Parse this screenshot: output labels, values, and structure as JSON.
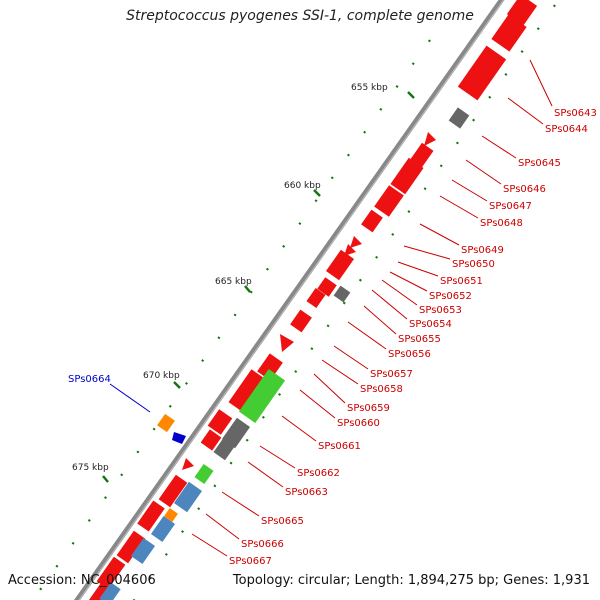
{
  "title": "Streptococcus pyogenes SSI-1, complete genome",
  "footer": {
    "accession": "Accession: NC_004606",
    "summary": "Topology: circular; Length: 1,894,275 bp; Genes: 1,931"
  },
  "colors": {
    "forward": "#ee1111",
    "forward_dark": "#bb0000",
    "neutral": "#666666",
    "neutral_dark": "#444444",
    "green": "#44cc33",
    "blue": "#4d86bf",
    "orange": "#ff8800",
    "highlight": "#0000cc",
    "label_red": "#cc0000",
    "tick": "#117711",
    "backbone": "#888888"
  },
  "kbp_ticks": [
    {
      "id": "655",
      "label": "655 kbp"
    },
    {
      "id": "660",
      "label": "660 kbp"
    },
    {
      "id": "665",
      "label": "665 kbp"
    },
    {
      "id": "670",
      "label": "670 kbp"
    },
    {
      "id": "675",
      "label": "675 kbp"
    }
  ],
  "gene_labels": [
    {
      "id": "SPs0643",
      "text": "SPs0643"
    },
    {
      "id": "SPs0644",
      "text": "SPs0644"
    },
    {
      "id": "SPs0645",
      "text": "SPs0645"
    },
    {
      "id": "SPs0646",
      "text": "SPs0646"
    },
    {
      "id": "SPs0647",
      "text": "SPs0647"
    },
    {
      "id": "SPs0648",
      "text": "SPs0648"
    },
    {
      "id": "SPs0649",
      "text": "SPs0649"
    },
    {
      "id": "SPs0650",
      "text": "SPs0650"
    },
    {
      "id": "SPs0651",
      "text": "SPs0651"
    },
    {
      "id": "SPs0652",
      "text": "SPs0652"
    },
    {
      "id": "SPs0653",
      "text": "SPs0653"
    },
    {
      "id": "SPs0654",
      "text": "SPs0654"
    },
    {
      "id": "SPs0655",
      "text": "SPs0655"
    },
    {
      "id": "SPs0656",
      "text": "SPs0656"
    },
    {
      "id": "SPs0657",
      "text": "SPs0657"
    },
    {
      "id": "SPs0658",
      "text": "SPs0658"
    },
    {
      "id": "SPs0659",
      "text": "SPs0659"
    },
    {
      "id": "SPs0660",
      "text": "SPs0660"
    },
    {
      "id": "SPs0661",
      "text": "SPs0661"
    },
    {
      "id": "SPs0662",
      "text": "SPs0662"
    },
    {
      "id": "SPs0663",
      "text": "SPs0663"
    },
    {
      "id": "SPs0665",
      "text": "SPs0665"
    },
    {
      "id": "SPs0666",
      "text": "SPs0666"
    },
    {
      "id": "SPs0667",
      "text": "SPs0667"
    }
  ],
  "highlighted_label": {
    "id": "SPs0664",
    "text": "SPs0664"
  }
}
